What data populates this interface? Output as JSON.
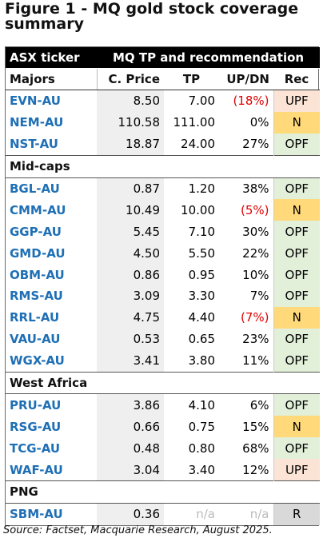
{
  "title_line1": "Figure 1 - MQ gold stock coverage",
  "title_line2": "summary",
  "header": {
    "ticker_label": "ASX ticker",
    "group_label": "MQ TP and recommendation",
    "majors_label": "Majors",
    "price_label": "C. Price",
    "tp_label": "TP",
    "updn_label": "UP/DN",
    "rec_label": "Rec"
  },
  "colors": {
    "OPF": "#e2efd9",
    "N": "#ffd97a",
    "UPF": "#fbe4d5",
    "R": "#d9d9d9"
  },
  "majors": [
    {
      "ticker": "EVN-AU",
      "price": "8.50",
      "tp": "7.00",
      "updn": "(18%)",
      "rec": "UPF",
      "neg": true
    },
    {
      "ticker": "NEM-AU",
      "price": "110.58",
      "tp": "111.00",
      "updn": "0%",
      "rec": "N",
      "neg": false
    },
    {
      "ticker": "NST-AU",
      "price": "18.87",
      "tp": "24.00",
      "updn": "27%",
      "rec": "OPF",
      "neg": false
    }
  ],
  "midcaps_label": "Mid-caps",
  "midcaps": [
    {
      "ticker": "BGL-AU",
      "price": "0.87",
      "tp": "1.20",
      "updn": "38%",
      "rec": "OPF",
      "neg": false
    },
    {
      "ticker": "CMM-AU",
      "price": "10.49",
      "tp": "10.00",
      "updn": "(5%)",
      "rec": "N",
      "neg": true
    },
    {
      "ticker": "GGP-AU",
      "price": "5.45",
      "tp": "7.10",
      "updn": "30%",
      "rec": "OPF",
      "neg": false
    },
    {
      "ticker": "GMD-AU",
      "price": "4.50",
      "tp": "5.50",
      "updn": "22%",
      "rec": "OPF",
      "neg": false
    },
    {
      "ticker": "OBM-AU",
      "price": "0.86",
      "tp": "0.95",
      "updn": "10%",
      "rec": "OPF",
      "neg": false
    },
    {
      "ticker": "RMS-AU",
      "price": "3.09",
      "tp": "3.30",
      "updn": "7%",
      "rec": "OPF",
      "neg": false
    },
    {
      "ticker": "RRL-AU",
      "price": "4.75",
      "tp": "4.40",
      "updn": "(7%)",
      "rec": "N",
      "neg": true
    },
    {
      "ticker": "VAU-AU",
      "price": "0.53",
      "tp": "0.65",
      "updn": "23%",
      "rec": "OPF",
      "neg": false
    },
    {
      "ticker": "WGX-AU",
      "price": "3.41",
      "tp": "3.80",
      "updn": "11%",
      "rec": "OPF",
      "neg": false
    }
  ],
  "westafrica_label": "West Africa",
  "westafrica": [
    {
      "ticker": "PRU-AU",
      "price": "3.86",
      "tp": "4.10",
      "updn": "6%",
      "rec": "OPF",
      "neg": false
    },
    {
      "ticker": "RSG-AU",
      "price": "0.66",
      "tp": "0.75",
      "updn": "15%",
      "rec": "N",
      "neg": false
    },
    {
      "ticker": "TCG-AU",
      "price": "0.48",
      "tp": "0.80",
      "updn": "68%",
      "rec": "OPF",
      "neg": false
    },
    {
      "ticker": "WAF-AU",
      "price": "3.04",
      "tp": "3.40",
      "updn": "12%",
      "rec": "UPF",
      "neg": false
    }
  ],
  "png_label": "PNG",
  "png": [
    {
      "ticker": "SBM-AU",
      "price": "0.36",
      "tp": "n/a",
      "updn": "n/a",
      "rec": "R",
      "neg": false,
      "na": true
    }
  ],
  "source": "Source: Factset, Macquarie Research, August 2025."
}
